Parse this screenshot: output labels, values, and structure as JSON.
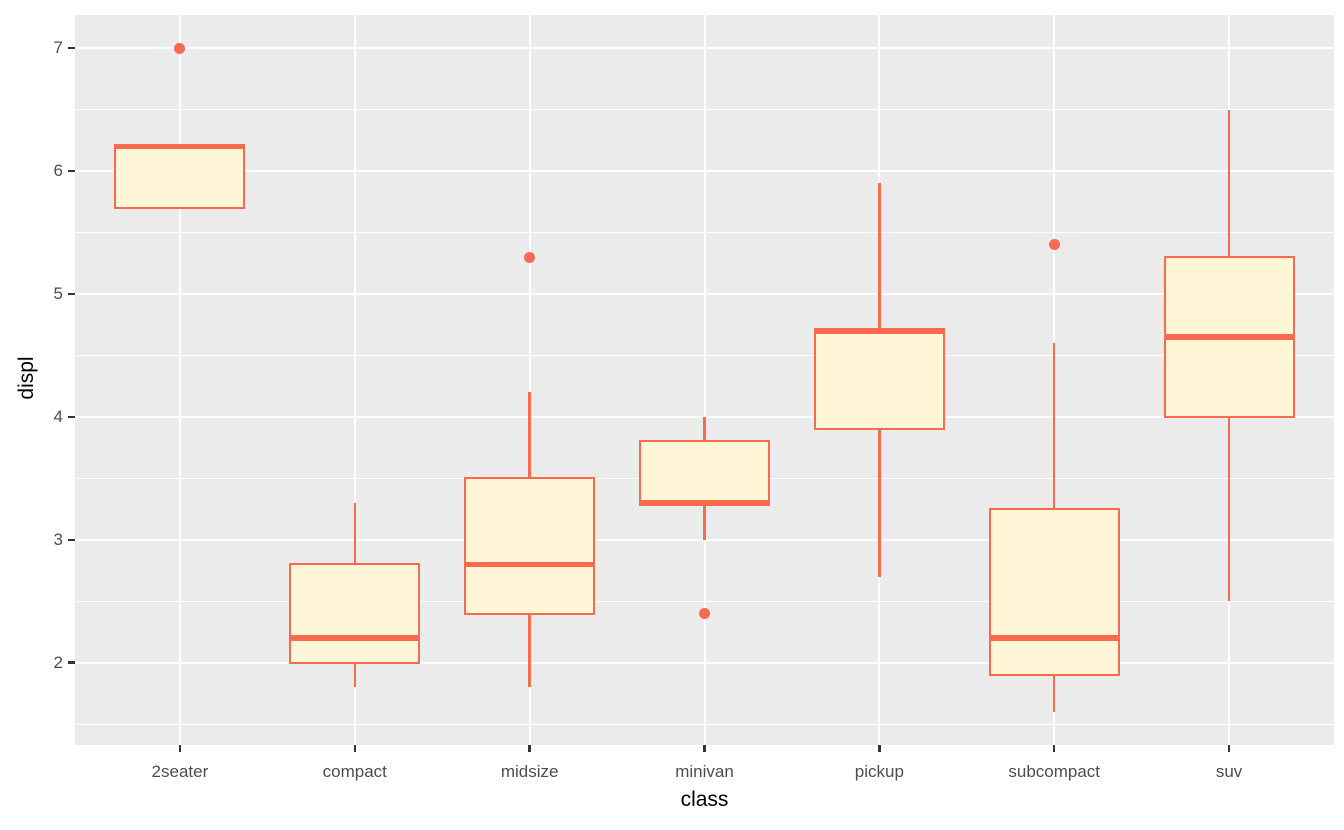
{
  "chart_data": {
    "type": "boxplot",
    "title": "",
    "xlabel": "class",
    "ylabel": "displ",
    "categories": [
      "2seater",
      "compact",
      "midsize",
      "minivan",
      "pickup",
      "subcompact",
      "suv"
    ],
    "series": [
      {
        "category": "2seater",
        "whisker_low": 5.7,
        "q1": 5.7,
        "median": 6.2,
        "q3": 6.2,
        "whisker_high": 6.2,
        "outliers": [
          7.0
        ]
      },
      {
        "category": "compact",
        "whisker_low": 1.8,
        "q1": 2.0,
        "median": 2.2,
        "q3": 2.8,
        "whisker_high": 3.3,
        "outliers": []
      },
      {
        "category": "midsize",
        "whisker_low": 1.8,
        "q1": 2.4,
        "median": 2.8,
        "q3": 3.5,
        "whisker_high": 4.2,
        "outliers": [
          5.3
        ]
      },
      {
        "category": "minivan",
        "whisker_low": 3.0,
        "q1": 3.3,
        "median": 3.3,
        "q3": 3.8,
        "whisker_high": 4.0,
        "outliers": [
          2.4
        ]
      },
      {
        "category": "pickup",
        "whisker_low": 2.7,
        "q1": 3.9,
        "median": 4.7,
        "q3": 4.7,
        "whisker_high": 5.9,
        "outliers": []
      },
      {
        "category": "subcompact",
        "whisker_low": 1.6,
        "q1": 1.9,
        "median": 2.2,
        "q3": 3.25,
        "whisker_high": 4.6,
        "outliers": [
          5.4
        ]
      },
      {
        "category": "suv",
        "whisker_low": 2.5,
        "q1": 4.0,
        "median": 4.65,
        "q3": 5.3,
        "whisker_high": 6.5,
        "outliers": []
      }
    ],
    "yticks": [
      2,
      3,
      4,
      5,
      6,
      7
    ],
    "y_minor_ticks": [
      1.5,
      2.5,
      3.5,
      4.5,
      5.5,
      6.5
    ],
    "ylim": [
      1.33,
      7.27
    ],
    "grid": true,
    "legend": "none",
    "colors": {
      "panel_background": "#EBEBEB",
      "gridline": "#FFFFFF",
      "box_stroke": "#FA6A4E",
      "box_fill": "#FFF6D8",
      "outlier": "#FA6A4E",
      "axis_text": "#4D4D4D",
      "axis_title": "#000000",
      "tick_mark": "#333333",
      "figure_background": "#FFFFFF"
    }
  }
}
